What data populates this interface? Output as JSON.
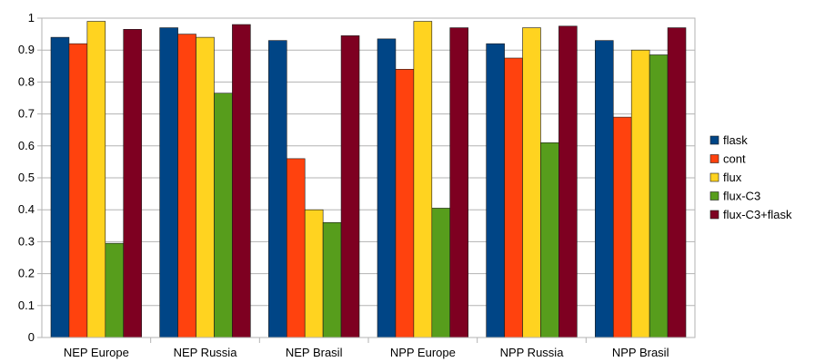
{
  "chart_data": {
    "type": "bar",
    "categories": [
      "NEP Europe",
      "NEP Russia",
      "NEP Brasil",
      "NPP Europe",
      "NPP Russia",
      "NPP Brasil"
    ],
    "series": [
      {
        "name": "flask",
        "color": "#004586",
        "values": [
          0.94,
          0.97,
          0.93,
          0.935,
          0.92,
          0.93
        ]
      },
      {
        "name": "cont",
        "color": "#ff420e",
        "values": [
          0.92,
          0.95,
          0.56,
          0.84,
          0.875,
          0.69
        ]
      },
      {
        "name": "flux",
        "color": "#ffd320",
        "values": [
          0.99,
          0.94,
          0.4,
          0.99,
          0.97,
          0.9
        ]
      },
      {
        "name": "flux-C3",
        "color": "#579d1c",
        "values": [
          0.295,
          0.765,
          0.36,
          0.405,
          0.61,
          0.885
        ]
      },
      {
        "name": "flux-C3+flask",
        "color": "#7e0021",
        "values": [
          0.965,
          0.98,
          0.945,
          0.97,
          0.975,
          0.97
        ]
      }
    ],
    "yticks": [
      "0",
      "0.1",
      "0.2",
      "0.3",
      "0.4",
      "0.5",
      "0.6",
      "0.7",
      "0.8",
      "0.9",
      "1"
    ],
    "ylim": [
      0,
      1
    ],
    "grid": true,
    "legend": "right",
    "title": "",
    "xlabel": "",
    "ylabel": ""
  }
}
